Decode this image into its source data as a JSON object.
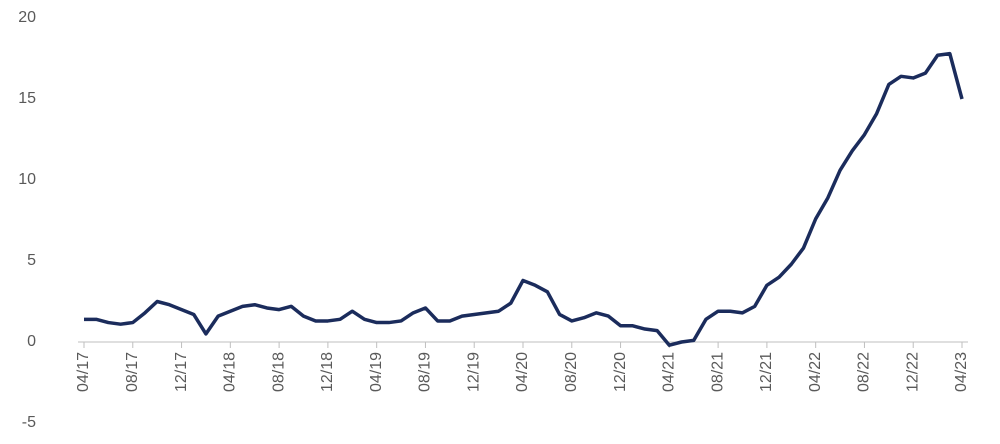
{
  "chart_data": {
    "type": "line",
    "color": "#1b2c5c",
    "categories": [
      "04/17",
      null,
      null,
      null,
      "08/17",
      null,
      null,
      null,
      "12/17",
      null,
      null,
      null,
      "04/18",
      null,
      null,
      null,
      "08/18",
      null,
      null,
      null,
      "12/18",
      null,
      null,
      null,
      "04/19",
      null,
      null,
      null,
      "08/19",
      null,
      null,
      null,
      "12/19",
      null,
      null,
      null,
      "04/20",
      null,
      null,
      null,
      "08/20",
      null,
      null,
      null,
      "12/20",
      null,
      null,
      null,
      "04/21",
      null,
      null,
      null,
      "08/21",
      null,
      null,
      null,
      "12/21",
      null,
      null,
      null,
      "04/22",
      null,
      null,
      null,
      "08/22",
      null,
      null,
      null,
      "12/22",
      null,
      null,
      null,
      "04/23"
    ],
    "values": [
      1.4,
      1.4,
      1.2,
      1.1,
      1.2,
      1.8,
      2.5,
      2.3,
      2.0,
      1.7,
      0.5,
      1.6,
      1.9,
      2.2,
      2.3,
      2.1,
      2.0,
      2.2,
      1.6,
      1.3,
      1.3,
      1.4,
      1.9,
      1.4,
      1.2,
      1.2,
      1.3,
      1.8,
      2.1,
      1.3,
      1.3,
      1.6,
      1.7,
      1.8,
      1.9,
      2.4,
      3.8,
      3.5,
      3.1,
      1.7,
      1.3,
      1.5,
      1.8,
      1.6,
      1.0,
      1.0,
      0.8,
      0.7,
      -0.2,
      0.0,
      0.1,
      1.4,
      1.9,
      1.9,
      1.8,
      2.2,
      3.5,
      4.0,
      4.8,
      5.8,
      7.6,
      8.9,
      10.6,
      11.8,
      12.8,
      14.1,
      15.9,
      16.4,
      16.3,
      16.6,
      17.7,
      17.8,
      15.0
    ],
    "ylim": [
      -5,
      20
    ],
    "yticks": [
      -5,
      0,
      5,
      10,
      15,
      20
    ]
  }
}
